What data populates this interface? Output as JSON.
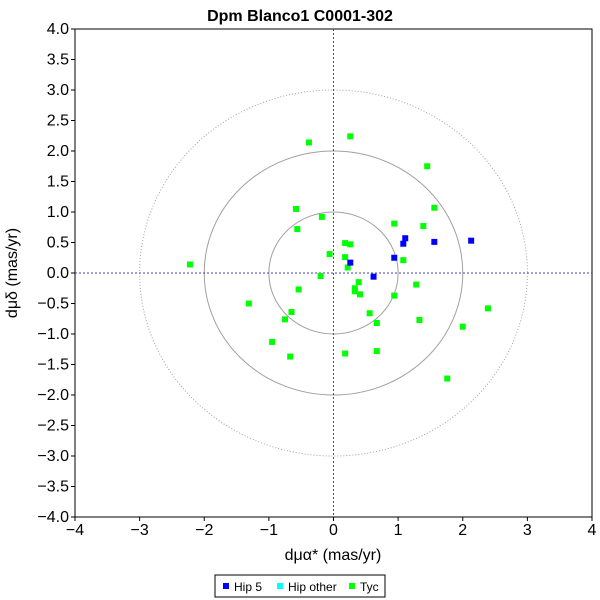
{
  "chart_data": {
    "type": "scatter",
    "title": "Dpm Blanco1  C0001-302",
    "xlabel": "dμα* (mas/yr)",
    "ylabel": "dμδ (mas/yr)",
    "xlim": [
      -4,
      4
    ],
    "ylim": [
      -4,
      4
    ],
    "x_ticks": [
      "−4",
      "−3",
      "−2",
      "−1",
      "0",
      "1",
      "2",
      "3",
      "4"
    ],
    "y_ticks": [
      "4.0",
      "3.5",
      "3.0",
      "2.5",
      "2.0",
      "1.5",
      "1.0",
      "0.5",
      "0.0",
      "−0.5",
      "−1.0",
      "−1.5",
      "−2.0",
      "−2.5",
      "−3.0",
      "−3.5",
      "−4.0"
    ],
    "circles_radii": [
      1,
      2,
      3
    ],
    "grid": false,
    "legend_position": "bottom-center",
    "series": [
      {
        "name": "Hip 5",
        "color": "#0000ff",
        "points": [
          [
            2.13,
            0.53
          ],
          [
            1.56,
            0.51
          ],
          [
            1.11,
            0.57
          ],
          [
            1.08,
            0.48
          ],
          [
            0.94,
            0.25
          ],
          [
            0.62,
            -0.06
          ],
          [
            0.26,
            0.17
          ]
        ]
      },
      {
        "name": "Hip other",
        "color": "#00ffff",
        "points": []
      },
      {
        "name": "Tyc",
        "color": "#00ff00",
        "points": [
          [
            0.26,
            2.24
          ],
          [
            -0.38,
            2.14
          ],
          [
            1.45,
            1.75
          ],
          [
            1.56,
            1.07
          ],
          [
            -0.58,
            1.05
          ],
          [
            -0.18,
            0.92
          ],
          [
            0.94,
            0.81
          ],
          [
            1.39,
            0.77
          ],
          [
            -0.56,
            0.72
          ],
          [
            0.18,
            0.49
          ],
          [
            0.26,
            0.47
          ],
          [
            -0.06,
            0.31
          ],
          [
            0.18,
            0.26
          ],
          [
            1.08,
            0.21
          ],
          [
            -2.22,
            0.14
          ],
          [
            0.22,
            0.09
          ],
          [
            -0.2,
            -0.05
          ],
          [
            0.39,
            -0.15
          ],
          [
            0.33,
            -0.25
          ],
          [
            0.33,
            -0.3
          ],
          [
            0.41,
            -0.35
          ],
          [
            1.28,
            -0.19
          ],
          [
            -0.54,
            -0.27
          ],
          [
            0.94,
            -0.37
          ],
          [
            -1.31,
            -0.5
          ],
          [
            2.39,
            -0.58
          ],
          [
            0.56,
            -0.66
          ],
          [
            -0.65,
            -0.64
          ],
          [
            -0.75,
            -0.76
          ],
          [
            1.33,
            -0.77
          ],
          [
            0.67,
            -0.82
          ],
          [
            2.0,
            -0.88
          ],
          [
            -0.95,
            -1.13
          ],
          [
            0.67,
            -1.28
          ],
          [
            0.18,
            -1.32
          ],
          [
            -0.67,
            -1.37
          ],
          [
            1.76,
            -1.73
          ]
        ]
      }
    ]
  }
}
